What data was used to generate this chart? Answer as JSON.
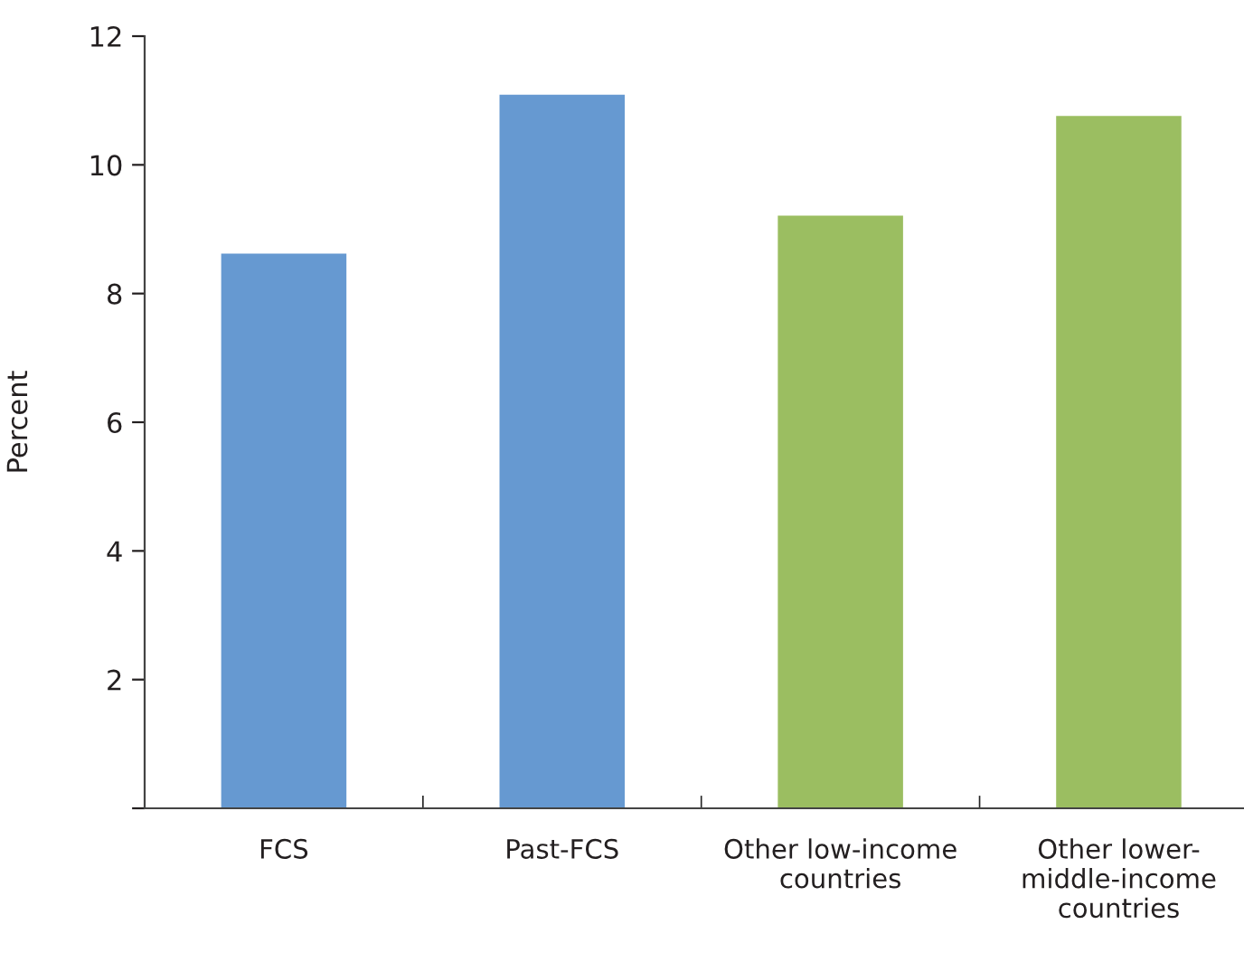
{
  "chart_data": {
    "type": "bar",
    "ylabel": "Percent",
    "categories": [
      "FCS",
      "Past-FCS",
      "Other low-income\ncountries",
      "Other lower-\nmiddle-income\ncountries"
    ],
    "values": [
      8.62,
      11.09,
      9.21,
      10.76
    ],
    "colors": [
      "#6699d1",
      "#6699d1",
      "#9bbe61",
      "#9bbe61"
    ],
    "ylim": [
      0,
      12
    ],
    "yticks": [
      {
        "value": 0,
        "label": null
      },
      2,
      4,
      6,
      8,
      10,
      12
    ],
    "grid": false,
    "legend": false
  }
}
